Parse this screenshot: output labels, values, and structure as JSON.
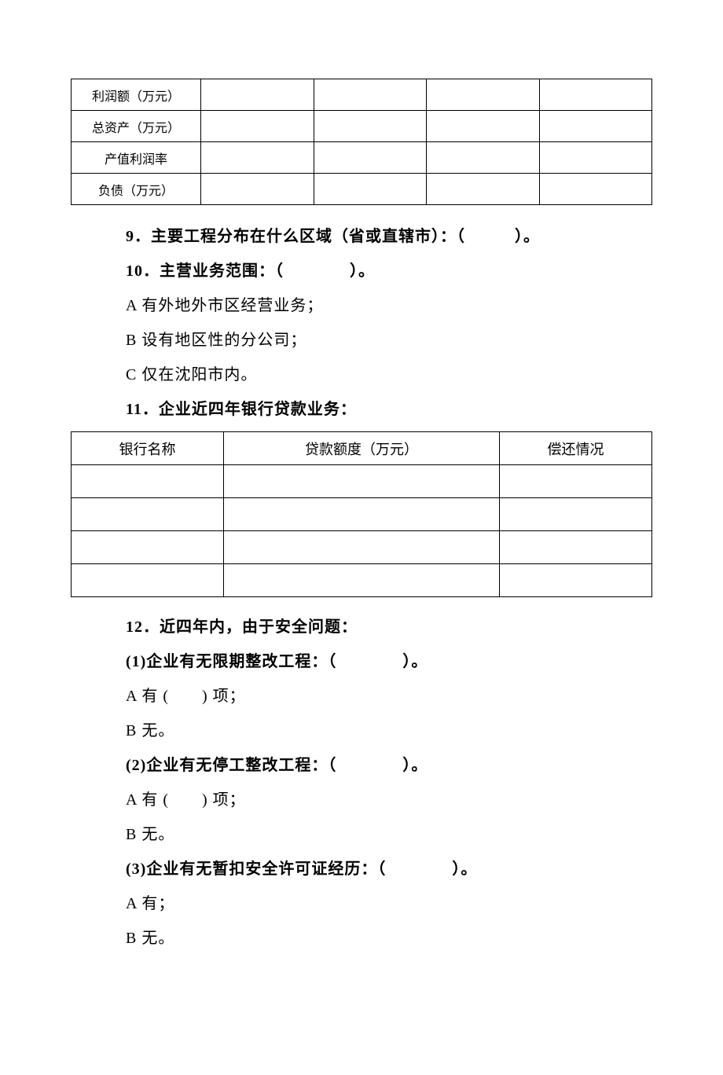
{
  "table1": {
    "rows": [
      {
        "label": "利润额（万元）",
        "c1": "",
        "c2": "",
        "c3": "",
        "c4": ""
      },
      {
        "label": "总资产（万元）",
        "c1": "",
        "c2": "",
        "c3": "",
        "c4": ""
      },
      {
        "label": "产值利润率",
        "c1": "",
        "c2": "",
        "c3": "",
        "c4": ""
      },
      {
        "label": "负债（万元）",
        "c1": "",
        "c2": "",
        "c3": "",
        "c4": ""
      }
    ]
  },
  "q9": "9．主要工程分布在什么区域（省或直辖市）：（　　　）。",
  "q10": {
    "title": "10．主营业务范围：（　　　　）。",
    "optA": "A 有外地外市区经营业务；",
    "optB": "B 设有地区性的分公司；",
    "optC": "C 仅在沈阳市内。"
  },
  "q11": {
    "title": "11．企业近四年银行贷款业务：",
    "headers": {
      "h1": "银行名称",
      "h2": "贷款额度（万元）",
      "h3": "偿还情况"
    },
    "rows": [
      {
        "c1": "",
        "c2": "",
        "c3": ""
      },
      {
        "c1": "",
        "c2": "",
        "c3": ""
      },
      {
        "c1": "",
        "c2": "",
        "c3": ""
      },
      {
        "c1": "",
        "c2": "",
        "c3": ""
      }
    ]
  },
  "q12": {
    "title": "12．近四年内，由于安全问题：",
    "sub1": {
      "title": "(1)企业有无限期整改工程：（　　　　）。",
      "optA": "A 有 (　　) 项；",
      "optB": "B 无。"
    },
    "sub2": {
      "title": "(2)企业有无停工整改工程：（　　　　）。",
      "optA": "A 有 (　　) 项；",
      "optB": "B 无。"
    },
    "sub3": {
      "title": "(3)企业有无暂扣安全许可证经历：（　　　　）。",
      "optA": "A 有；",
      "optB": "B 无。"
    }
  }
}
